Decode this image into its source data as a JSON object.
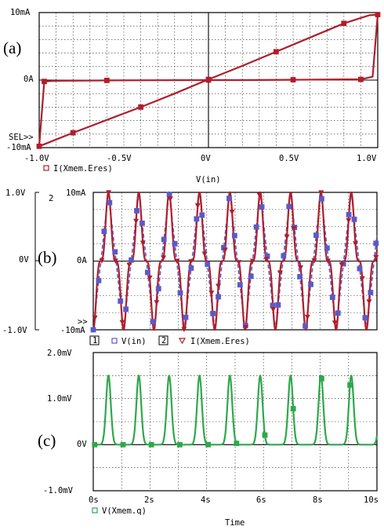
{
  "colors": {
    "red": "#b01e2c",
    "blue": "#5a5ac8",
    "green": "#2ea84a"
  },
  "icons": {
    "marker_square": "square-marker-icon",
    "marker_triangle": "triangle-marker-icon"
  },
  "chart_data": [
    {
      "id": "a",
      "type": "line",
      "panel_label": "(a)",
      "xlabel": "V(in)",
      "ylabel": "",
      "xlim": [
        -1.0,
        1.0
      ],
      "ylim": [
        -10,
        10
      ],
      "y_unit": "mA",
      "x_ticks": [
        "-1.0V",
        "-0.5V",
        "0V",
        "0.5V",
        "1.0V"
      ],
      "y_ticks": [
        "10mA",
        "0A",
        "-10mA"
      ],
      "sel_marker": "SEL>>",
      "grid": true,
      "legend": [
        {
          "marker": "□",
          "name": "I(Xmem.Eres)",
          "color": "#b01e2c"
        }
      ],
      "series": [
        {
          "name": "I(Xmem.Eres)",
          "note_shape": "pinched hysteresis loop",
          "x": [
            -1.0,
            -0.9,
            -0.8,
            -0.6,
            -0.4,
            -0.2,
            0.0,
            0.2,
            0.4,
            0.6,
            0.8,
            0.95,
            1.0,
            0.97,
            0.9,
            0.8,
            0.5,
            0.2,
            0.0,
            -0.3,
            -0.6,
            -0.9,
            -0.97,
            -1.0
          ],
          "y": [
            -9.8,
            -8.8,
            -7.8,
            -5.9,
            -4.0,
            -2.0,
            0.1,
            2.1,
            4.2,
            6.3,
            8.4,
            9.6,
            9.7,
            0.5,
            0.1,
            0.1,
            0.05,
            0.0,
            0.0,
            -0.02,
            -0.05,
            -0.1,
            -0.2,
            -9.8
          ]
        }
      ]
    },
    {
      "id": "b",
      "type": "line",
      "panel_label": "(b)",
      "xlim": [
        0,
        10
      ],
      "left_ylim": [
        -1.0,
        1.0
      ],
      "left_ticks": [
        "1.0V",
        "0V",
        "-1.0V"
      ],
      "right_ylim": [
        -10,
        10
      ],
      "right_ticks": [
        "10mA",
        "0A",
        "-10mA"
      ],
      "axis_markers": {
        "left": "1",
        "right": "2",
        "sel": ">>"
      },
      "grid": true,
      "legend": [
        {
          "index": "1",
          "marker": "□",
          "name": "V(in)",
          "color": "#5a5ac8"
        },
        {
          "index": "2",
          "marker": "▽",
          "name": "I(Xmem.Eres)",
          "color": "#b01e2c"
        }
      ],
      "series": [
        {
          "name": "V(in)",
          "axis": 1,
          "waveform": "sawtooth",
          "period_s": 1.07,
          "amplitude": 1.0,
          "unit": "V"
        },
        {
          "name": "I(Xmem.Eres)",
          "axis": 2,
          "waveform": "memristive current",
          "period_s": 1.07,
          "amplitude": 10,
          "unit": "mA"
        }
      ]
    },
    {
      "id": "c",
      "type": "line",
      "panel_label": "(c)",
      "xlabel": "Time",
      "xlim": [
        0,
        10
      ],
      "ylim": [
        -1.0,
        2.0
      ],
      "y_unit": "mV",
      "x_ticks": [
        "0s",
        "2s",
        "4s",
        "6s",
        "8s",
        "10s"
      ],
      "y_ticks": [
        "2.0mV",
        "1.0mV",
        "0V",
        "-1.0mV"
      ],
      "grid": true,
      "legend": [
        {
          "marker": "□",
          "name": "V(Xmem.q)",
          "color": "#2ea84a"
        }
      ],
      "series": [
        {
          "name": "V(Xmem.q)",
          "waveform": "periodic pulses",
          "period_s": 1.07,
          "peak": 1.5,
          "unit": "mV"
        }
      ]
    }
  ]
}
